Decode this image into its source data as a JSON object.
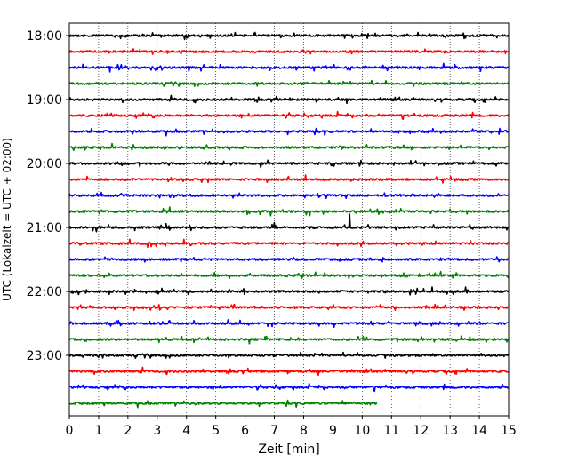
{
  "chart_data": {
    "type": "line",
    "title": "",
    "xlabel": "Zeit  [min]",
    "ylabel": "UTC (Lokalzeit = UTC + 02:00)",
    "xlim": [
      0,
      15
    ],
    "xticks": [
      0,
      1,
      2,
      3,
      4,
      5,
      6,
      7,
      8,
      9,
      10,
      11,
      12,
      13,
      14,
      15
    ],
    "x_grid": "dotted vertical lines at each minute",
    "y_tick_labels": [
      "18:00",
      "19:00",
      "20:00",
      "21:00",
      "22:00",
      "23:00"
    ],
    "trace_interval_min": 15,
    "trace_colors": [
      "#000000",
      "#ff0000",
      "#0000ff",
      "#008000"
    ],
    "traces": [
      {
        "start": "18:00",
        "color": "#000000",
        "end_min": 15
      },
      {
        "start": "18:15",
        "color": "#ff0000",
        "end_min": 15
      },
      {
        "start": "18:30",
        "color": "#0000ff",
        "end_min": 15
      },
      {
        "start": "18:45",
        "color": "#008000",
        "end_min": 15
      },
      {
        "start": "19:00",
        "color": "#000000",
        "end_min": 15
      },
      {
        "start": "19:15",
        "color": "#ff0000",
        "end_min": 15
      },
      {
        "start": "19:30",
        "color": "#0000ff",
        "end_min": 15
      },
      {
        "start": "19:45",
        "color": "#008000",
        "end_min": 15
      },
      {
        "start": "20:00",
        "color": "#000000",
        "end_min": 15
      },
      {
        "start": "20:15",
        "color": "#ff0000",
        "end_min": 15
      },
      {
        "start": "20:30",
        "color": "#0000ff",
        "end_min": 15
      },
      {
        "start": "20:45",
        "color": "#008000",
        "end_min": 15
      },
      {
        "start": "21:00",
        "color": "#000000",
        "end_min": 15
      },
      {
        "start": "21:15",
        "color": "#ff0000",
        "end_min": 15
      },
      {
        "start": "21:30",
        "color": "#0000ff",
        "end_min": 15
      },
      {
        "start": "21:45",
        "color": "#008000",
        "end_min": 15
      },
      {
        "start": "22:00",
        "color": "#000000",
        "end_min": 15
      },
      {
        "start": "22:15",
        "color": "#ff0000",
        "end_min": 15
      },
      {
        "start": "22:30",
        "color": "#0000ff",
        "end_min": 15
      },
      {
        "start": "22:45",
        "color": "#008000",
        "end_min": 15
      },
      {
        "start": "23:00",
        "color": "#000000",
        "end_min": 15
      },
      {
        "start": "23:15",
        "color": "#ff0000",
        "end_min": 15
      },
      {
        "start": "23:30",
        "color": "#0000ff",
        "end_min": 15
      },
      {
        "start": "23:45",
        "color": "#008000",
        "end_min": 10.5
      }
    ]
  }
}
